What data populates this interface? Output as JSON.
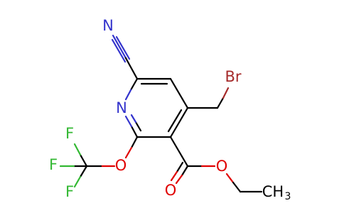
{
  "atoms": [
    {
      "label": "N"
    },
    {
      "label": "N"
    },
    {
      "label": "Br"
    },
    {
      "label": "O"
    },
    {
      "label": "O"
    },
    {
      "label": "O"
    },
    {
      "label": "F"
    },
    {
      "label": "F"
    },
    {
      "label": "F"
    },
    {
      "label": "CH",
      "subscript": "3"
    }
  ]
}
